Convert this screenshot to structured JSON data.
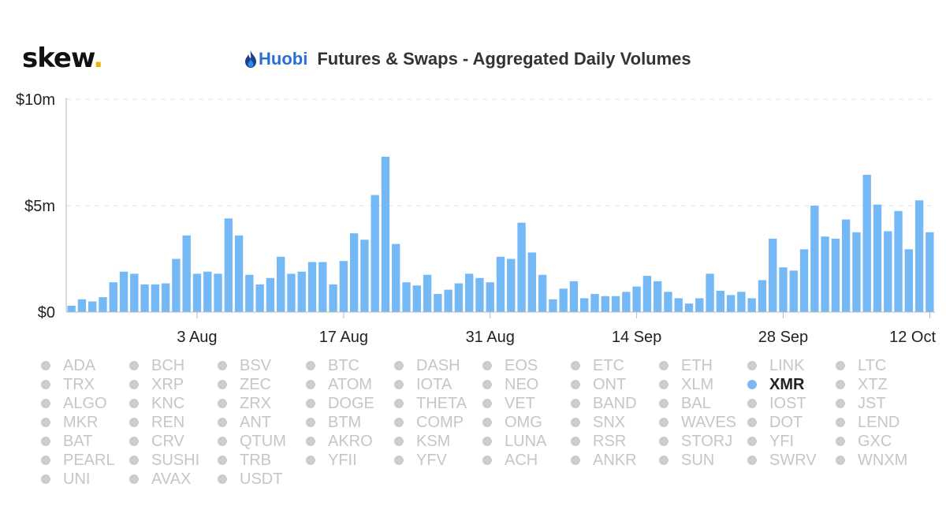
{
  "brand": {
    "name": "skew",
    "dot": "."
  },
  "header": {
    "exchange_logo_text": "Huobi",
    "title": "Futures & Swaps - Aggregated Daily Volumes"
  },
  "colors": {
    "bar": "#74b8f5",
    "grid": "#e3e3e3",
    "axis": "#bbbbbb",
    "legend_inactive": "#c6c6c6",
    "legend_active": "#222222",
    "exchange": "#2a6fd6"
  },
  "chart_data": {
    "type": "bar",
    "title": "Futures & Swaps - Aggregated Daily Volumes",
    "xlabel": "",
    "ylabel": "",
    "ylim": [
      0,
      10
    ],
    "y_unit": "million USD",
    "y_ticks": [
      {
        "value": 0,
        "label": "$0"
      },
      {
        "value": 5,
        "label": "$5m"
      },
      {
        "value": 10,
        "label": "$10m"
      }
    ],
    "x_ticks": [
      {
        "index": 12,
        "label": "3 Aug"
      },
      {
        "index": 26,
        "label": "17 Aug"
      },
      {
        "index": 40,
        "label": "31 Aug"
      },
      {
        "index": 54,
        "label": "14 Sep"
      },
      {
        "index": 68,
        "label": "28 Sep"
      },
      {
        "index": 82,
        "label": "12 Oct"
      }
    ],
    "grid": true,
    "series": [
      {
        "name": "XMR",
        "values": [
          0.3,
          0.6,
          0.5,
          0.7,
          1.4,
          1.9,
          1.8,
          1.3,
          1.3,
          1.35,
          2.5,
          3.6,
          1.8,
          1.9,
          1.8,
          4.4,
          3.6,
          1.75,
          1.3,
          1.6,
          2.6,
          1.8,
          1.9,
          2.35,
          2.35,
          1.3,
          2.4,
          3.7,
          3.4,
          5.5,
          7.3,
          3.2,
          1.4,
          1.25,
          1.75,
          0.85,
          1.05,
          1.35,
          1.8,
          1.6,
          1.4,
          2.6,
          2.5,
          4.2,
          2.8,
          1.75,
          0.6,
          1.1,
          1.45,
          0.65,
          0.85,
          0.75,
          0.75,
          0.95,
          1.2,
          1.7,
          1.45,
          0.95,
          0.65,
          0.4,
          0.65,
          1.8,
          1.0,
          0.8,
          0.95,
          0.65,
          1.5,
          3.45,
          2.1,
          1.95,
          2.95,
          5.0,
          3.55,
          3.45,
          4.35,
          3.75,
          6.45,
          5.05,
          3.8,
          4.75,
          2.95,
          5.25,
          3.75
        ]
      }
    ]
  },
  "legend": {
    "active": "XMR",
    "items": [
      "ADA",
      "BCH",
      "BSV",
      "BTC",
      "DASH",
      "EOS",
      "ETC",
      "ETH",
      "LINK",
      "LTC",
      "TRX",
      "XRP",
      "ZEC",
      "ATOM",
      "IOTA",
      "NEO",
      "ONT",
      "XLM",
      "XMR",
      "XTZ",
      "ALGO",
      "KNC",
      "ZRX",
      "DOGE",
      "THETA",
      "VET",
      "BAND",
      "BAL",
      "IOST",
      "JST",
      "MKR",
      "REN",
      "ANT",
      "BTM",
      "COMP",
      "OMG",
      "SNX",
      "WAVES",
      "DOT",
      "LEND",
      "BAT",
      "CRV",
      "QTUM",
      "AKRO",
      "KSM",
      "LUNA",
      "RSR",
      "STORJ",
      "YFI",
      "GXC",
      "PEARL",
      "SUSHI",
      "TRB",
      "YFII",
      "YFV",
      "ACH",
      "ANKR",
      "SUN",
      "SWRV",
      "WNXM",
      "UNI",
      "AVAX",
      "USDT"
    ]
  }
}
